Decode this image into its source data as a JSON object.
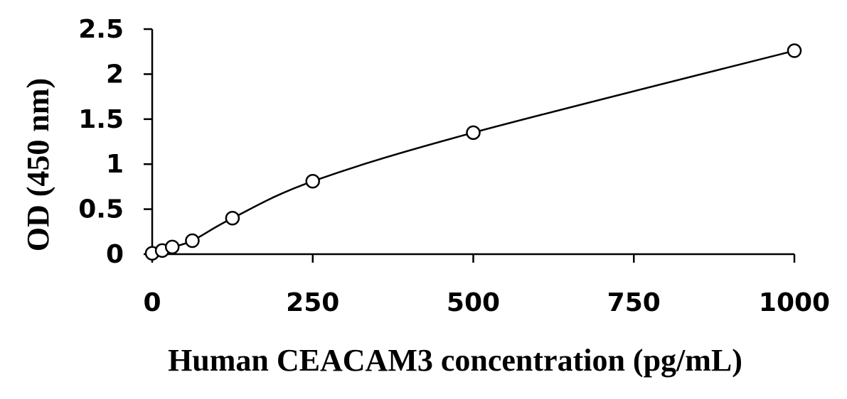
{
  "chart_data": {
    "type": "scatter",
    "title": "",
    "xlabel": "Human CEACAM3 concentration (pg/mL)",
    "ylabel": "OD (450 nm)",
    "xlim": [
      0,
      1000
    ],
    "ylim": [
      0,
      2.5
    ],
    "xticks": [
      "0",
      "250",
      "500",
      "750",
      "1000"
    ],
    "yticks": [
      "0",
      "0.5",
      "1",
      "1.5",
      "2",
      "2.5"
    ],
    "grid": false,
    "legend": "none",
    "series": [
      {
        "marker": "open-circle",
        "line": "smooth-fit",
        "color": "#000000",
        "x": [
          0,
          15.6,
          31.25,
          62.5,
          125,
          250,
          500,
          1000
        ],
        "y": [
          0.01,
          0.04,
          0.08,
          0.15,
          0.4,
          0.81,
          1.35,
          2.26
        ]
      }
    ]
  }
}
